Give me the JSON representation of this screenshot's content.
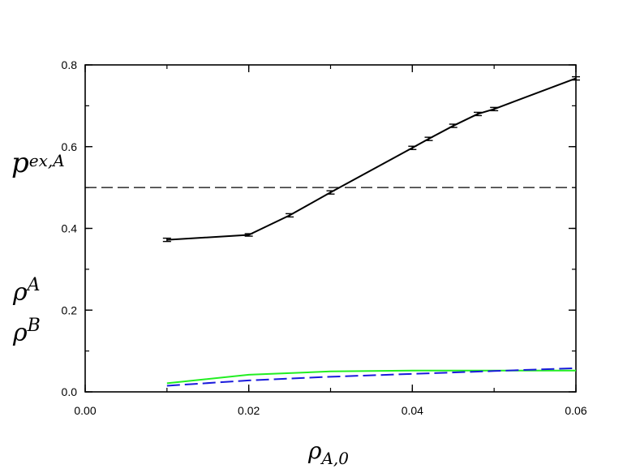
{
  "chart_data": {
    "type": "line",
    "title": "",
    "xlabel": {
      "symbol": "ρ",
      "subscript": "A,0"
    },
    "ylabel_top": {
      "symbol": "p",
      "subscript": "ex,A"
    },
    "ylabel_bottom": [
      {
        "symbol": "ρ",
        "subscript": "B"
      },
      {
        "symbol": "ρ",
        "subscript": "A"
      }
    ],
    "xlim": [
      0.0,
      0.06
    ],
    "ylim": [
      0.0,
      0.8
    ],
    "x_ticks": [
      0.0,
      0.02,
      0.04,
      0.06
    ],
    "x_tick_labels": [
      "0.00",
      "0.02",
      "0.04",
      "0.06"
    ],
    "y_ticks": [
      0.0,
      0.2,
      0.4,
      0.6,
      0.8
    ],
    "y_tick_labels": [
      "0.0",
      "0.2",
      "0.4",
      "0.6",
      "0.8"
    ],
    "x_minor_step": 0.01,
    "y_minor_step": 0.1,
    "grid": false,
    "reference_line": {
      "y": 0.5,
      "style": "dashed",
      "color": "#000000"
    },
    "series": [
      {
        "color": "#000000",
        "style": "solid",
        "error_bars": true,
        "x": [
          0.01,
          0.02,
          0.025,
          0.03,
          0.04,
          0.042,
          0.045,
          0.048,
          0.05,
          0.06
        ],
        "y": [
          0.372,
          0.384,
          0.432,
          0.488,
          0.597,
          0.619,
          0.651,
          0.68,
          0.692,
          0.767
        ],
        "err": [
          0.004,
          0.003,
          0.004,
          0.004,
          0.004,
          0.004,
          0.004,
          0.004,
          0.004,
          0.004
        ]
      },
      {
        "color": "#22ee22",
        "style": "solid",
        "x": [
          0.01,
          0.02,
          0.03,
          0.04,
          0.05,
          0.06
        ],
        "y": [
          0.021,
          0.042,
          0.05,
          0.052,
          0.052,
          0.052
        ]
      },
      {
        "color": "#1a1adc",
        "style": "dashed",
        "x": [
          0.01,
          0.02,
          0.03,
          0.04,
          0.05,
          0.06
        ],
        "y": [
          0.015,
          0.028,
          0.037,
          0.044,
          0.051,
          0.058
        ]
      }
    ]
  }
}
